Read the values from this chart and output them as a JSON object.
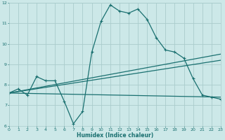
{
  "xlabel": "Humidex (Indice chaleur)",
  "bg_color": "#cce8e8",
  "grid_color": "#aacccc",
  "line_color": "#1a7070",
  "xlim": [
    0,
    23
  ],
  "ylim": [
    6,
    12
  ],
  "xticks": [
    0,
    1,
    2,
    3,
    4,
    5,
    6,
    7,
    8,
    9,
    10,
    11,
    12,
    13,
    14,
    15,
    16,
    17,
    18,
    19,
    20,
    21,
    22,
    23
  ],
  "yticks": [
    6,
    7,
    8,
    9,
    10,
    11,
    12
  ],
  "series_main": {
    "x": [
      0,
      1,
      2,
      3,
      4,
      5,
      6,
      7,
      8,
      9,
      10,
      11,
      12,
      13,
      14,
      15,
      16,
      17,
      18,
      19,
      20,
      21,
      22,
      23
    ],
    "y": [
      7.6,
      7.8,
      7.5,
      8.4,
      8.2,
      8.2,
      7.2,
      6.1,
      6.7,
      9.6,
      11.1,
      11.9,
      11.6,
      11.5,
      11.7,
      11.2,
      10.3,
      9.7,
      9.6,
      9.3,
      8.3,
      7.5,
      7.4,
      7.3
    ]
  },
  "series_lines": [
    {
      "x": [
        0,
        23
      ],
      "y": [
        7.6,
        7.4
      ]
    },
    {
      "x": [
        0,
        23
      ],
      "y": [
        7.6,
        9.5
      ]
    },
    {
      "x": [
        0,
        23
      ],
      "y": [
        7.6,
        9.2
      ]
    }
  ],
  "marker": "+",
  "markersize": 3.0,
  "markeredgewidth": 0.8,
  "linewidth": 0.9,
  "tick_fontsize": 4.5,
  "xlabel_fontsize": 5.5,
  "xlabel_fontweight": "bold"
}
